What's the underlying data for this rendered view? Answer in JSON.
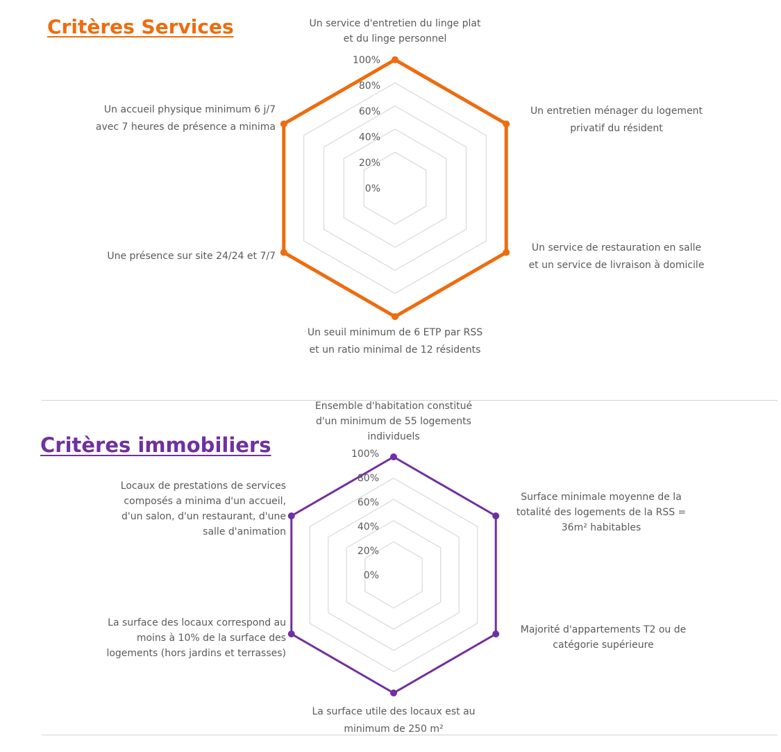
{
  "panels": {
    "services": {
      "title": "Critères Services",
      "color": "#ee6c0e"
    },
    "immobilier": {
      "title": "Critères  immobiliers",
      "color": "#7030a0"
    }
  },
  "chart_data": [
    {
      "type": "radar",
      "title": "Critères Services",
      "grid": true,
      "rlim": [
        0,
        100
      ],
      "tick_labels": [
        "0%",
        "20%",
        "40%",
        "60%",
        "80%",
        "100%"
      ],
      "categories": [
        [
          "Un service d'entretien du linge plat",
          "et du linge personnel"
        ],
        [
          "Un entretien ménager du logement",
          "privatif du résident"
        ],
        [
          "Un service de restauration en salle",
          "et un service de livraison à domicile"
        ],
        [
          "Un seuil minimum de 6 ETP par RSS",
          "et un ratio minimal de 12 résidents"
        ],
        [
          "Une présence sur site 24/24 et 7/7"
        ],
        [
          "Un accueil physique minimum 6 j/7",
          "avec 7 heures de présence a minima"
        ]
      ],
      "series": [
        {
          "values": [
            100,
            100,
            100,
            100,
            100,
            100
          ],
          "color": "#ee6c0e"
        }
      ]
    },
    {
      "type": "radar",
      "title": "Critères  immobiliers",
      "grid": true,
      "rlim": [
        0,
        100
      ],
      "tick_labels": [
        "0%",
        "20%",
        "40%",
        "60%",
        "80%",
        "100%"
      ],
      "categories": [
        [
          "Ensemble d'habitation constitué",
          "d'un minimum de 55 logements",
          "individuels"
        ],
        [
          "Surface minimale moyenne de la",
          "totalité des logements de la RSS =",
          "36m² habitables"
        ],
        [
          "Majorité d'appartements T2 ou de",
          "catégorie supérieure"
        ],
        [
          "La surface utile des locaux est au",
          "minimum de 250 m²"
        ],
        [
          "La surface des locaux correspond au",
          "moins à 10% de la surface des",
          "logements (hors jardins et terrasses)"
        ],
        [
          "Locaux de prestations de services",
          "composés a minima d'un accueil,",
          "d'un salon, d'un restaurant, d'une",
          "salle d'animation"
        ]
      ],
      "series": [
        {
          "values": [
            100,
            100,
            100,
            100,
            100,
            100
          ],
          "color": "#7030a0"
        }
      ]
    }
  ]
}
